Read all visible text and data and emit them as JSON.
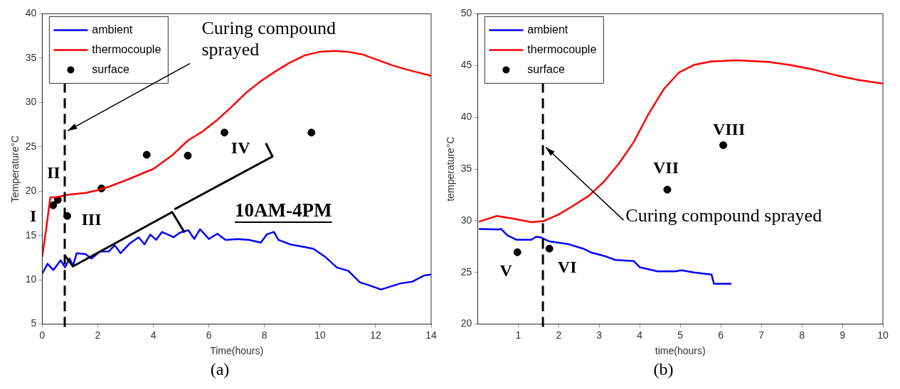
{
  "chart_data": [
    {
      "type": "line",
      "title": "(a)",
      "xlabel": "Time(hours)",
      "ylabel": "Temperature°C",
      "xlim": [
        0,
        14
      ],
      "xticks": [
        0,
        2,
        4,
        6,
        8,
        10,
        12,
        14
      ],
      "ylim": [
        5,
        40
      ],
      "yticks": [
        5,
        10,
        15,
        20,
        25,
        30,
        35,
        40
      ],
      "grid": false,
      "legend": "top left",
      "line_style": "solid",
      "series": [
        {
          "name": "ambient",
          "color": "#0000ff",
          "x": [
            0,
            0.19,
            0.4,
            0.66,
            0.82,
            0.98,
            1.11,
            1.24,
            1.56,
            1.77,
            2.08,
            2.4,
            2.61,
            2.82,
            3.15,
            3.47,
            3.68,
            3.89,
            4.1,
            4.31,
            4.52,
            4.73,
            4.94,
            5.26,
            5.47,
            5.68,
            6.0,
            6.3,
            6.6,
            7.03,
            7.45,
            7.87,
            8.08,
            8.34,
            8.5,
            8.92,
            9.44,
            9.76,
            10.18,
            10.6,
            11.02,
            11.44,
            11.75,
            12.2,
            12.49,
            12.91,
            13.33,
            13.76,
            14
          ],
          "values": [
            10.7,
            11.8,
            11.1,
            12.2,
            11.4,
            12.4,
            11.6,
            13.0,
            12.9,
            12.4,
            13.2,
            13.2,
            13.9,
            13.0,
            14.1,
            14.8,
            14.0,
            15.1,
            14.5,
            15.4,
            15.1,
            14.8,
            15.3,
            15.6,
            14.6,
            15.7,
            14.6,
            15.2,
            14.5,
            14.6,
            14.5,
            14.2,
            15.1,
            15.4,
            14.5,
            14.0,
            13.7,
            13.5,
            12.6,
            11.4,
            11.0,
            9.7,
            9.4,
            8.9,
            9.2,
            9.6,
            9.8,
            10.5,
            10.6
          ]
        },
        {
          "name": "thermocouple",
          "color": "#ff0000",
          "x": [
            0,
            0.14,
            0.29,
            0.5,
            0.93,
            1.56,
            2,
            2.4,
            3.15,
            3.68,
            4,
            4.7,
            5.24,
            5.76,
            6.29,
            6.81,
            7.34,
            7.87,
            8.39,
            8.92,
            9.44,
            9.97,
            10.49,
            11.02,
            11.54,
            12.07,
            12.59,
            13.13,
            14
          ],
          "values": [
            12.6,
            15.7,
            19.3,
            19.3,
            19.6,
            19.8,
            20.1,
            20.5,
            21.4,
            22.1,
            22.5,
            24.1,
            25.7,
            26.7,
            28.0,
            29.5,
            31.1,
            32.4,
            33.5,
            34.5,
            35.3,
            35.7,
            35.8,
            35.7,
            35.4,
            34.8,
            34.2,
            33.7,
            33.0
          ]
        },
        {
          "name": "surface",
          "type": "scatter",
          "color": "#000000",
          "marker": "circle",
          "x": [
            0.39,
            0.56,
            0.9,
            2.13,
            3.76,
            5.24,
            6.56,
            9.69
          ],
          "values": [
            18.4,
            19.0,
            17.2,
            20.3,
            24.1,
            24.0,
            26.6,
            26.6
          ]
        }
      ],
      "ref_lines": [
        {
          "axis": "x",
          "value": 0.81,
          "color": "#000000",
          "line_style": "dashed"
        }
      ],
      "annotations": [
        {
          "text": "I",
          "x": 0.39,
          "y": 18.4
        },
        {
          "text": "II",
          "x": 0.56,
          "y": 19.0
        },
        {
          "text": "III",
          "x": 0.9,
          "y": 17.2
        },
        "IV",
        "10AM-4PM",
        {
          "text": "Curing compound sprayed",
          "x": 0.81,
          "y": 26.8
        }
      ]
    },
    {
      "type": "line",
      "title": "(b)",
      "xlabel": "time(hours)",
      "ylabel": "temperature°C",
      "xlim": [
        0,
        10
      ],
      "xticks": [
        1,
        2,
        3,
        4,
        5,
        6,
        7,
        8,
        9,
        10
      ],
      "ylim": [
        20,
        50
      ],
      "yticks": [
        20,
        25,
        30,
        35,
        40,
        45,
        50
      ],
      "grid": false,
      "legend": "top left",
      "line_style": "solid",
      "series": [
        {
          "name": "ambient",
          "color": "#0000ff",
          "x": [
            0.03,
            0.51,
            0.58,
            0.73,
            0.96,
            1.33,
            1.44,
            1.55,
            1.77,
            2.22,
            2.6,
            2.82,
            3.12,
            3.4,
            3.85,
            4.0,
            4.44,
            4.88,
            5.03,
            5.33,
            5.77,
            5.83,
            6.26
          ],
          "values": [
            29.2,
            29.15,
            29.2,
            28.6,
            28.15,
            28.15,
            28.45,
            28.4,
            28.0,
            27.75,
            27.3,
            26.9,
            26.6,
            26.2,
            26.1,
            25.5,
            25.1,
            25.1,
            25.2,
            25.0,
            24.8,
            23.9,
            23.9
          ]
        },
        {
          "name": "thermocouple",
          "color": "#ff0000",
          "x": [
            0.03,
            0.47,
            0.88,
            1.33,
            1.62,
            2,
            2.36,
            2.74,
            3.1,
            3.48,
            3.85,
            4.2,
            4.59,
            4.96,
            5.33,
            5.77,
            6.44,
            7.18,
            7.7,
            8.3,
            8.9,
            9.4,
            10
          ],
          "values": [
            29.9,
            30.45,
            30.2,
            29.85,
            29.95,
            30.6,
            31.45,
            32.4,
            33.7,
            35.5,
            37.6,
            40.2,
            42.7,
            44.3,
            45.05,
            45.4,
            45.5,
            45.35,
            45.05,
            44.6,
            44.0,
            43.6,
            43.25
          ]
        },
        {
          "name": "surface",
          "type": "scatter",
          "color": "#000000",
          "marker": "circle",
          "x": [
            0.98,
            1.77,
            4.68,
            6.06
          ],
          "values": [
            26.95,
            27.3,
            33.0,
            37.3
          ]
        }
      ],
      "ref_lines": [
        {
          "axis": "x",
          "value": 1.61,
          "color": "#000000",
          "line_style": "dashed"
        }
      ],
      "annotations": [
        {
          "text": "V",
          "x": 0.98,
          "y": 26.95
        },
        {
          "text": "VI",
          "x": 1.77,
          "y": 27.3
        },
        {
          "text": "VII",
          "x": 4.68,
          "y": 33.0
        },
        {
          "text": "VIII",
          "x": 6.06,
          "y": 37.3
        },
        {
          "text": "Curing compound sprayed",
          "x": 1.61,
          "y": 37.1
        }
      ]
    }
  ]
}
